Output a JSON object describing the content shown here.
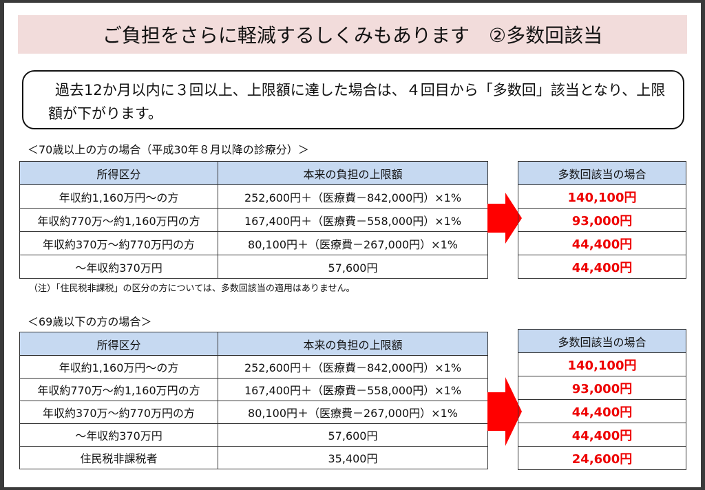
{
  "title": "ご負担をさらに軽減するしくみもあります　②多数回該当",
  "callout_text": "過去12か月以内に３回以上、上限額に達した場合は、４回目から「多数回」該当となり、上限額が下がります。",
  "section1": {
    "caption": "＜70歳以上の方の場合（平成30年８月以降の診療分）＞",
    "headers": [
      "所得区分",
      "本来の負担の上限額"
    ],
    "rows": [
      [
        "年収約1,160万円～の方",
        "252,600円＋（医療費－842,000円）×1%"
      ],
      [
        "年収約770万～約1,160万円の方",
        "167,400円＋（医療費－558,000円）×1%"
      ],
      [
        "年収約370万～約770万円の方",
        "80,100円＋（医療費－267,000円）×1%"
      ],
      [
        "～年収約370万円",
        "57,600円"
      ]
    ],
    "result_header": "多数回該当の場合",
    "results": [
      "140,100円",
      "93,000円",
      "44,400円",
      "44,400円"
    ],
    "note": "（注）「住民税非課税」の区分の方については、多数回該当の適用はありません。"
  },
  "section2": {
    "caption": "＜69歳以下の方の場合＞",
    "headers": [
      "所得区分",
      "本来の負担の上限額"
    ],
    "rows": [
      [
        "年収約1,160万円～の方",
        "252,600円＋（医療費－842,000円）×1%"
      ],
      [
        "年収約770万～約1,160万円の方",
        "167,400円＋（医療費－558,000円）×1%"
      ],
      [
        "年収約370万～約770万円の方",
        "80,100円＋（医療費－267,000円）×1%"
      ],
      [
        "～年収約370万円",
        "57,600円"
      ],
      [
        "住民税非課税者",
        "35,400円"
      ]
    ],
    "result_header": "多数回該当の場合",
    "results": [
      "140,100円",
      "93,000円",
      "44,400円",
      "44,400円",
      "24,600円"
    ]
  },
  "colors": {
    "title_bg": "#f2dcdb",
    "header_bg": "#c6d9f1",
    "result_text": "#ee0000",
    "arrow": "#ff0000"
  },
  "icons": {
    "arrow": "right-arrow-icon"
  }
}
